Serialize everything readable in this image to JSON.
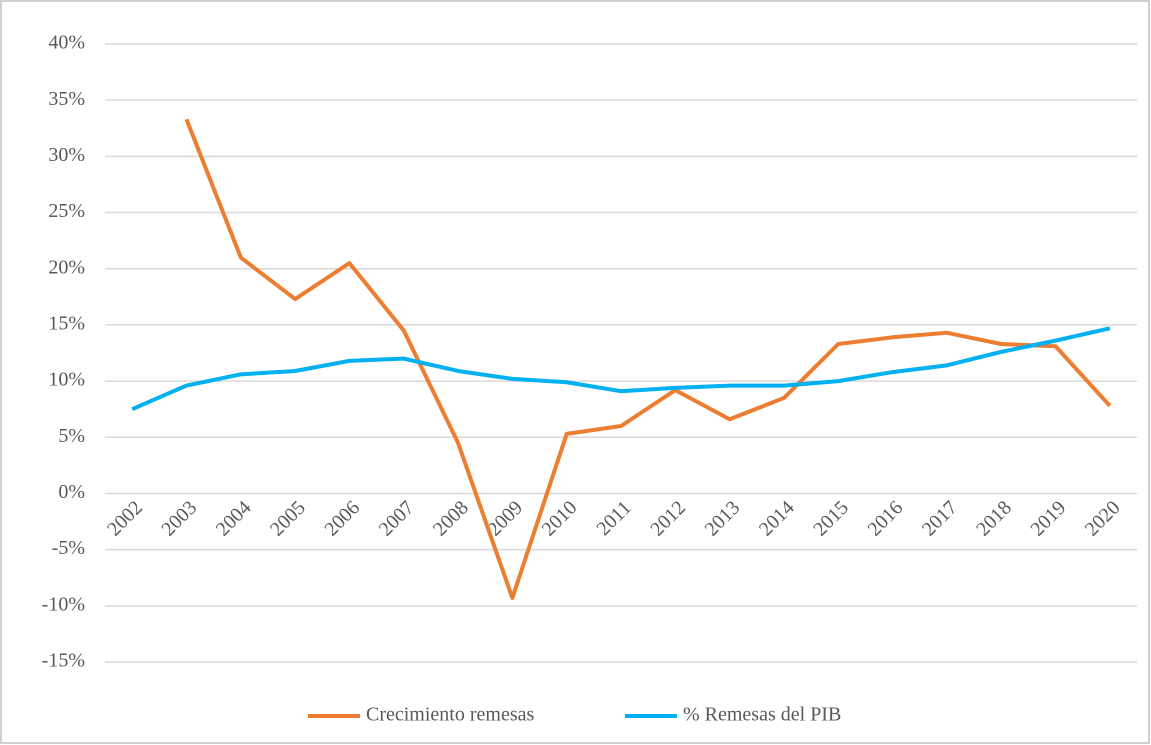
{
  "chart_data": {
    "type": "line",
    "categories": [
      "2002",
      "2003",
      "2004",
      "2005",
      "2006",
      "2007",
      "2008",
      "2009",
      "2010",
      "2011",
      "2012",
      "2013",
      "2014",
      "2015",
      "2016",
      "2017",
      "2018",
      "2019",
      "2020"
    ],
    "series": [
      {
        "name": "Crecimiento remesas",
        "color": "#ed7d31",
        "values": [
          null,
          33.3,
          21.0,
          17.3,
          20.5,
          14.5,
          4.5,
          -9.3,
          5.3,
          6.0,
          9.2,
          6.6,
          8.5,
          13.3,
          13.9,
          14.3,
          13.3,
          13.1,
          7.8
        ]
      },
      {
        "name": "% Remesas del PIB",
        "color": "#00b0f0",
        "values": [
          7.5,
          9.6,
          10.6,
          10.9,
          11.8,
          12.0,
          10.9,
          10.2,
          9.9,
          9.1,
          9.4,
          9.6,
          9.6,
          10.0,
          10.8,
          11.4,
          12.6,
          13.6,
          14.7
        ]
      }
    ],
    "ylim": [
      -15,
      40
    ],
    "yticks": [
      {
        "value": -15,
        "label": "-15%"
      },
      {
        "value": -10,
        "label": "-10%"
      },
      {
        "value": -5,
        "label": "-5%"
      },
      {
        "value": 0,
        "label": "0%"
      },
      {
        "value": 5,
        "label": "5%"
      },
      {
        "value": 10,
        "label": "10%"
      },
      {
        "value": 15,
        "label": "15%"
      },
      {
        "value": 20,
        "label": "20%"
      },
      {
        "value": 25,
        "label": "25%"
      },
      {
        "value": 30,
        "label": "30%"
      },
      {
        "value": 35,
        "label": "35%"
      },
      {
        "value": 40,
        "label": "40%"
      }
    ],
    "grid": true,
    "legend": "bottom"
  }
}
